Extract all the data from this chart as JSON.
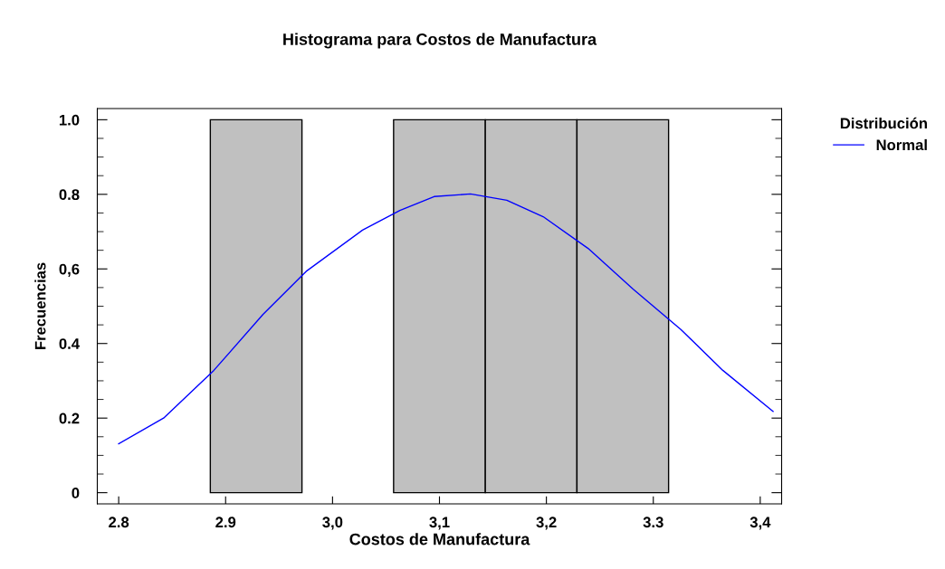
{
  "chart_data": {
    "type": "histogram",
    "title": "Histograma para Costos de Manufactura",
    "xlabel": "Costos de Manufactura",
    "ylabel": "Frecuencias",
    "legend_title": "Distribución",
    "bins": [
      2.8,
      2.8857,
      2.9714,
      3.0571,
      3.1429,
      3.2286,
      3.3143,
      3.4
    ],
    "values": [
      0,
      1,
      0,
      1,
      1,
      1,
      0
    ],
    "color": "#c0c0c0",
    "series": [
      {
        "type": "line",
        "name": "Normal",
        "color": "#0000ff",
        "x": [
          2.8,
          2.842,
          2.889,
          2.935,
          2.976,
          3.028,
          3.063,
          3.095,
          3.129,
          3.163,
          3.197,
          3.239,
          3.281,
          3.326,
          3.365,
          3.412
        ],
        "values": [
          0.131,
          0.2,
          0.328,
          0.478,
          0.595,
          0.704,
          0.757,
          0.794,
          0.801,
          0.784,
          0.74,
          0.655,
          0.546,
          0.437,
          0.328,
          0.218
        ]
      }
    ],
    "xlim": [
      2.78,
      3.42
    ],
    "ylim": [
      -0.03,
      1.03
    ],
    "xticks": [
      2.8,
      2.9,
      {
        "value": 3.0,
        "label": "3,0"
      },
      {
        "value": 3.1,
        "label": "3,1"
      },
      {
        "value": 3.2,
        "label": "3,2"
      },
      3.3,
      {
        "value": 3.4,
        "label": "3,4"
      }
    ],
    "yticks": [
      {
        "value": 0,
        "label": "0"
      },
      0.2,
      0.4,
      {
        "value": 0.6,
        "label": "0,6"
      },
      0.8,
      {
        "value": 1.0,
        "label": "1.0"
      }
    ],
    "legend": "top right",
    "grid": false
  }
}
